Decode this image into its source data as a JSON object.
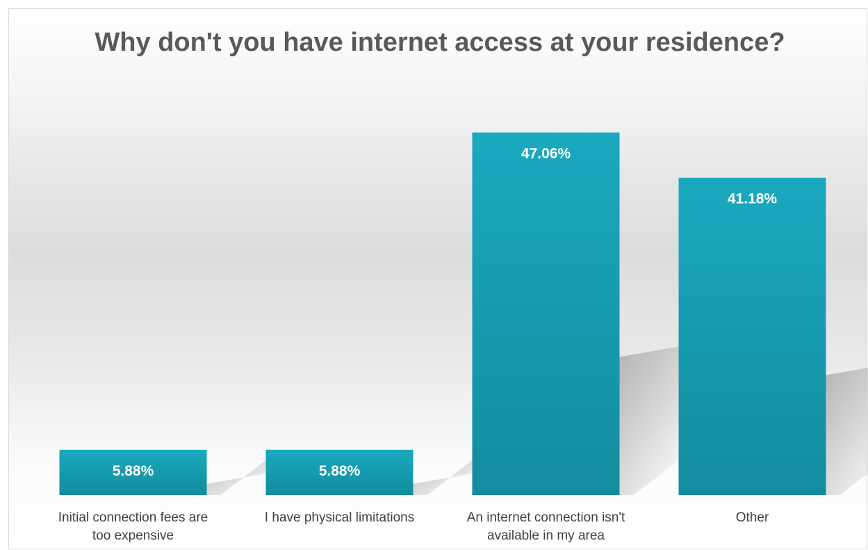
{
  "chart_data": {
    "type": "bar",
    "title": "Why don't you have internet access at your residence?",
    "categories": [
      [
        "Initial connection fees are",
        "too expensive"
      ],
      [
        "I have physical limitations"
      ],
      [
        "An internet connection isn't",
        "available in my area"
      ],
      [
        "Other"
      ]
    ],
    "values": [
      5.88,
      5.88,
      47.06,
      41.18
    ],
    "data_labels": [
      "5.88%",
      "5.88%",
      "47.06%",
      "41.18%"
    ],
    "ylim": [
      0,
      50
    ],
    "grid": false,
    "legend": "none",
    "bar_color_top": "#1aa9bf",
    "bar_color_bottom": "#138c9e",
    "shadow_color": "#9a9a9a"
  }
}
